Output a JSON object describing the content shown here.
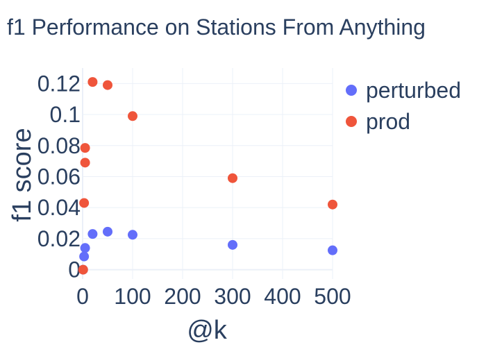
{
  "chart_data": {
    "type": "scatter",
    "title": "f1 Performance on Stations From Anything",
    "xlabel": "@k",
    "ylabel": "f1 score",
    "xlim": [
      0,
      500
    ],
    "ylim": [
      -0.006,
      0.13
    ],
    "x_ticks": [
      0,
      100,
      200,
      300,
      400,
      500
    ],
    "x_tick_labels": [
      "0",
      "100",
      "200",
      "300",
      "400",
      "500"
    ],
    "y_ticks": [
      0,
      0.02,
      0.04,
      0.06,
      0.08,
      0.1,
      0.12
    ],
    "y_tick_labels": [
      "0",
      "0.02",
      "0.04",
      "0.06",
      "0.08",
      "0.1",
      "0.12"
    ],
    "grid": true,
    "legend_position": "top-right",
    "series": [
      {
        "name": "perturbed",
        "color": "#636efa",
        "points": [
          {
            "x": 1,
            "y": 0.0
          },
          {
            "x": 3,
            "y": 0.0085
          },
          {
            "x": 5,
            "y": 0.014
          },
          {
            "x": 20,
            "y": 0.023
          },
          {
            "x": 50,
            "y": 0.0245
          },
          {
            "x": 100,
            "y": 0.0225
          },
          {
            "x": 300,
            "y": 0.016
          },
          {
            "x": 500,
            "y": 0.0125
          }
        ]
      },
      {
        "name": "prod",
        "color": "#ef553b",
        "points": [
          {
            "x": 1,
            "y": 0.0
          },
          {
            "x": 3,
            "y": 0.043
          },
          {
            "x": 5,
            "y": 0.069
          },
          {
            "x": 5,
            "y": 0.0785
          },
          {
            "x": 20,
            "y": 0.121
          },
          {
            "x": 50,
            "y": 0.119
          },
          {
            "x": 100,
            "y": 0.099
          },
          {
            "x": 300,
            "y": 0.059
          },
          {
            "x": 500,
            "y": 0.042
          }
        ]
      }
    ]
  }
}
